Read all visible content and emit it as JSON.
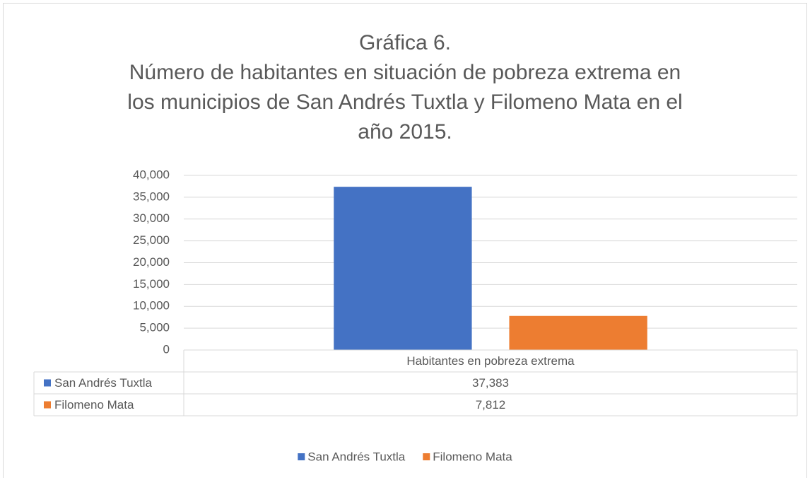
{
  "chart_data": {
    "type": "bar",
    "title": "Gráfica 6.",
    "subtitle": "Número de habitantes en situación de pobreza extrema en los municipios de San Andrés Tuxtla y Filomeno Mata en el año 2015.",
    "categories": [
      "Habitantes en pobreza extrema"
    ],
    "series": [
      {
        "name": "San Andrés Tuxtla",
        "color": "#4472c4",
        "values": [
          37383
        ],
        "value_labels": [
          "37,383"
        ]
      },
      {
        "name": "Filomeno Mata",
        "color": "#ed7d31",
        "values": [
          7812
        ],
        "value_labels": [
          "7,812"
        ]
      }
    ],
    "ylim": [
      0,
      40000
    ],
    "yticks": [
      0,
      {
        "value": 5000,
        "label": "5,000"
      },
      {
        "value": 10000,
        "label": "10,000"
      },
      {
        "value": 15000,
        "label": "15,000"
      },
      {
        "value": 20000,
        "label": "20,000"
      },
      {
        "value": 25000,
        "label": "25,000"
      },
      {
        "value": 30000,
        "label": "30,000"
      },
      {
        "value": 35000,
        "label": "35,000"
      },
      {
        "value": 40000,
        "label": "40,000"
      }
    ],
    "grid": true,
    "legend": "bottom",
    "data_table": true
  }
}
